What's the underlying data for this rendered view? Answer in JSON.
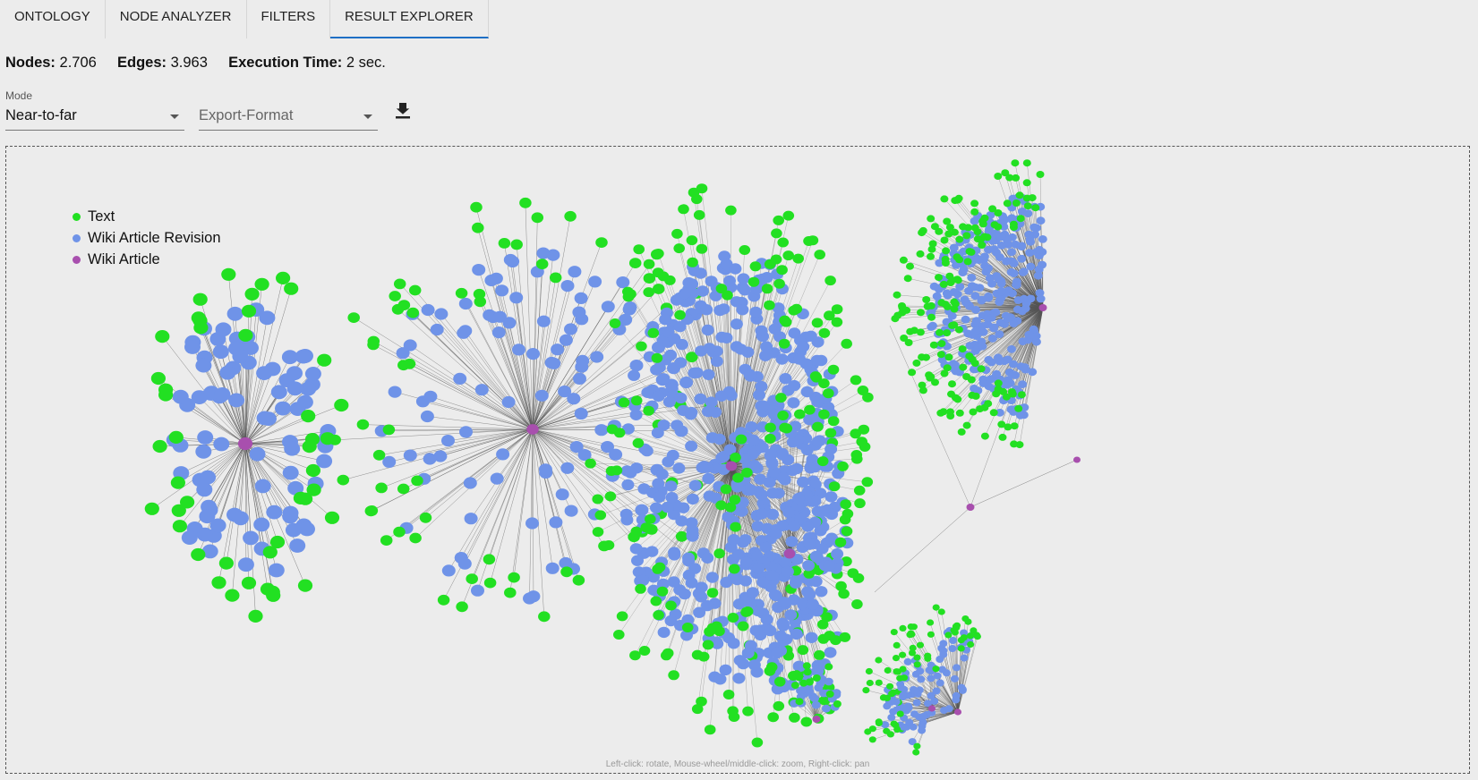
{
  "tabs": [
    {
      "label": "ONTOLOGY"
    },
    {
      "label": "NODE ANALYZER"
    },
    {
      "label": "FILTERS"
    },
    {
      "label": "RESULT EXPLORER",
      "active": true
    }
  ],
  "stats": {
    "nodes_label": "Nodes:",
    "nodes_value": "2.706",
    "edges_label": "Edges:",
    "edges_value": "3.963",
    "time_label": "Execution Time:",
    "time_value": "2 sec."
  },
  "mode": {
    "label": "Mode",
    "value": "Near-to-far"
  },
  "export": {
    "placeholder": "Export-Format"
  },
  "download_icon": "download-icon",
  "legend": [
    {
      "label": "Text",
      "color": "#22e022"
    },
    {
      "label": "Wiki Article Revision",
      "color": "#6f93e8"
    },
    {
      "label": "Wiki Article",
      "color": "#a84fae"
    }
  ],
  "hint": "Left-click: rotate, Mouse-wheel/middle-click: zoom, Right-click: pan"
}
